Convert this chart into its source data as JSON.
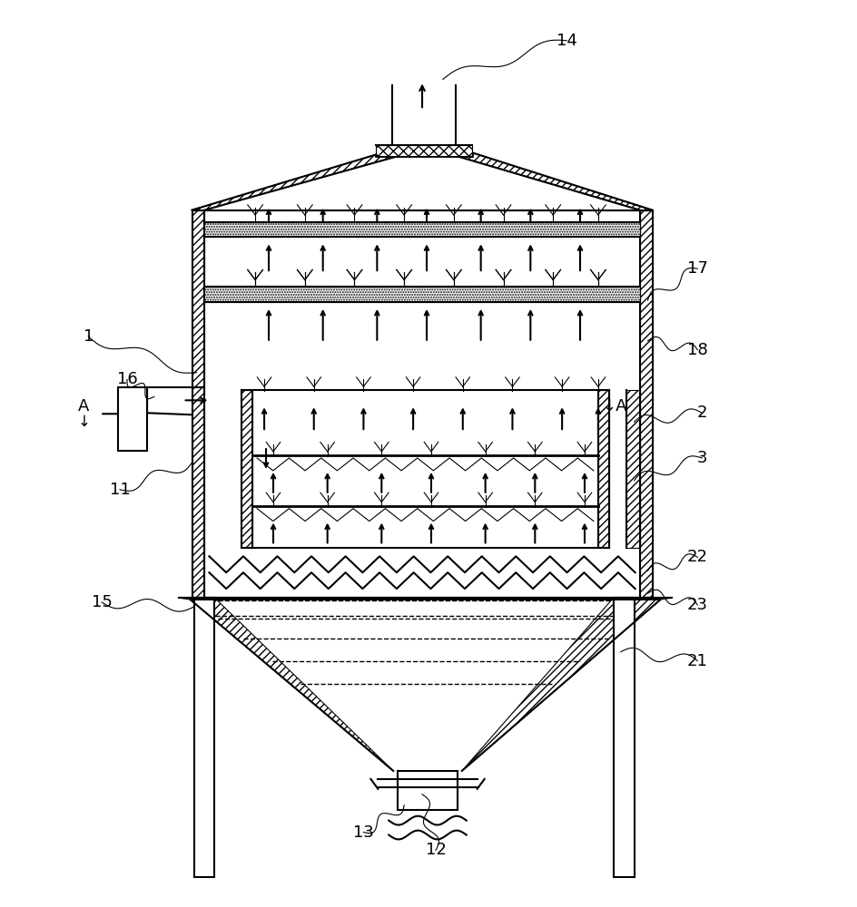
{
  "bg": "#ffffff",
  "lc": "#000000",
  "fig_w": 9.45,
  "fig_h": 10.0,
  "dpi": 100,
  "lw": 1.5,
  "lw2": 2.0,
  "lw_thin": 0.8,
  "label_fs": 13
}
